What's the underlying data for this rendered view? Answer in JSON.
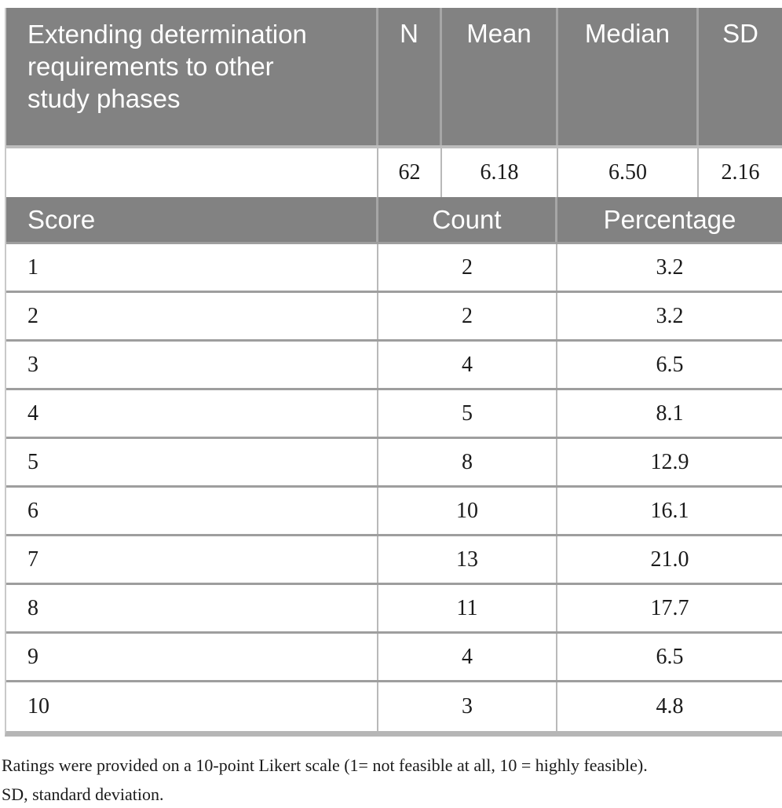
{
  "table": {
    "header": {
      "title": "Extending determination requirements to other study phases",
      "columns": [
        "N",
        "Mean",
        "Median",
        "SD"
      ]
    },
    "stats": {
      "n": "62",
      "mean": "6.18",
      "median": "6.50",
      "sd": "2.16"
    },
    "scores": {
      "columns": {
        "score": "Score",
        "count": "Count",
        "percentage": "Percentage"
      },
      "rows": [
        {
          "score": "1",
          "count": "2",
          "percentage": "3.2"
        },
        {
          "score": "2",
          "count": "2",
          "percentage": "3.2"
        },
        {
          "score": "3",
          "count": "4",
          "percentage": "6.5"
        },
        {
          "score": "4",
          "count": "5",
          "percentage": "8.1"
        },
        {
          "score": "5",
          "count": "8",
          "percentage": "12.9"
        },
        {
          "score": "6",
          "count": "10",
          "percentage": "16.1"
        },
        {
          "score": "7",
          "count": "13",
          "percentage": "21.0"
        },
        {
          "score": "8",
          "count": "11",
          "percentage": "17.7"
        },
        {
          "score": "9",
          "count": "4",
          "percentage": "6.5"
        },
        {
          "score": "10",
          "count": "3",
          "percentage": "4.8"
        }
      ]
    }
  },
  "footnotes": {
    "line1": "Ratings were provided on a 10-point Likert scale (1= not feasible at all, 10 = highly feasible).",
    "line2": "SD, standard deviation."
  },
  "colors": {
    "header_bg": "#828282",
    "header_divider": "#a6a6a6",
    "header_text": "#ffffff",
    "row_border": "#9e9e9e",
    "column_border": "#b9b9b9",
    "bottom_bar": "#b6b6b6",
    "body_text": "#1b1b1b"
  }
}
